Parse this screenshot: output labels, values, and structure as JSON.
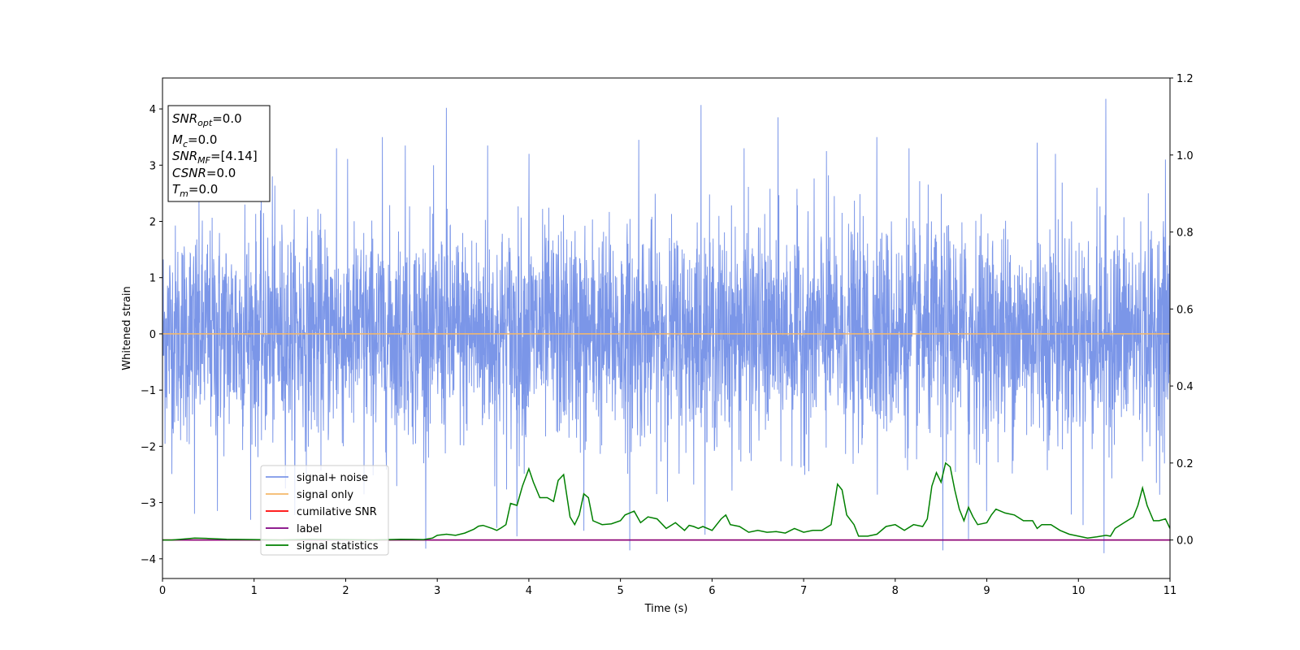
{
  "chart_data": {
    "type": "line",
    "xlabel": "Time (s)",
    "ylabel": "Whitened strain",
    "xlim": [
      0,
      11
    ],
    "ylim_left": [
      -4.35,
      4.55
    ],
    "ylim_right": [
      -0.1,
      1.2
    ],
    "x_ticks": [
      0,
      1,
      2,
      3,
      4,
      5,
      6,
      7,
      8,
      9,
      10,
      11
    ],
    "y_ticks_left": [
      -4,
      -3,
      -2,
      -1,
      0,
      1,
      2,
      3,
      4
    ],
    "y_ticks_right": [
      0.0,
      0.2,
      0.4,
      0.6,
      0.8,
      1.0,
      1.2
    ],
    "grid": false,
    "legend_position": "lower-left",
    "info_box": {
      "snr_opt": {
        "base": "SNR",
        "sub": "opt",
        "value": "=0.0"
      },
      "mc": {
        "base": "M",
        "sub": "c",
        "value": "=0.0"
      },
      "snr_mf": {
        "base": "SNR",
        "sub": "MF",
        "value": "=[4.14]"
      },
      "csnr": {
        "base": "CSNR",
        "sub": "",
        "value": "=0.0"
      },
      "tm": {
        "base": "T",
        "sub": "m",
        "value": "=0.0"
      }
    },
    "series": [
      {
        "name": "signal+ noise",
        "color": "#7b96e8",
        "axis": "left",
        "description": "noise",
        "noise_band": [
          -2.0,
          2.0
        ],
        "spikes": [
          [
            0.35,
            -3.2
          ],
          [
            0.6,
            -3.15
          ],
          [
            0.9,
            2.3
          ],
          [
            1.2,
            2.8
          ],
          [
            1.9,
            3.3
          ],
          [
            2.2,
            -2.85
          ],
          [
            2.4,
            3.5
          ],
          [
            2.65,
            3.35
          ],
          [
            3.1,
            4.02
          ],
          [
            3.55,
            3.35
          ],
          [
            3.65,
            -3.45
          ],
          [
            3.87,
            -3.6
          ],
          [
            4.0,
            3.2
          ],
          [
            4.6,
            -3.5
          ],
          [
            5.1,
            -3.85
          ],
          [
            5.2,
            3.45
          ],
          [
            5.88,
            4.07
          ],
          [
            6.35,
            3.3
          ],
          [
            6.72,
            3.85
          ],
          [
            7.25,
            3.25
          ],
          [
            7.8,
            3.5
          ],
          [
            8.15,
            3.3
          ],
          [
            8.52,
            -3.85
          ],
          [
            8.8,
            -3.65
          ],
          [
            9.55,
            3.4
          ],
          [
            9.75,
            3.2
          ],
          [
            10.05,
            -3.4
          ],
          [
            10.3,
            4.18
          ],
          [
            10.28,
            -3.9
          ],
          [
            10.95,
            3.1
          ]
        ]
      },
      {
        "name": "signal only",
        "color": "#f5b86a",
        "axis": "left",
        "x": [
          0,
          11
        ],
        "y": [
          0,
          0
        ]
      },
      {
        "name": "cumilative SNR",
        "color": "#ff0000",
        "axis": "right",
        "x": [
          0,
          11
        ],
        "y": [
          0,
          0
        ]
      },
      {
        "name": "label",
        "color": "#800080",
        "axis": "right",
        "x": [
          0,
          11
        ],
        "y": [
          0,
          0
        ]
      },
      {
        "name": "signal statistics",
        "color": "#008000",
        "axis": "right",
        "x": [
          0,
          0.1,
          0.2,
          0.35,
          0.5,
          0.7,
          1.0,
          1.3,
          1.6,
          2.0,
          2.3,
          2.6,
          2.85,
          2.95,
          3.0,
          3.1,
          3.2,
          3.3,
          3.4,
          3.45,
          3.5,
          3.6,
          3.65,
          3.7,
          3.75,
          3.8,
          3.87,
          3.93,
          4.0,
          4.05,
          4.12,
          4.2,
          4.27,
          4.32,
          4.38,
          4.45,
          4.5,
          4.55,
          4.6,
          4.65,
          4.7,
          4.8,
          4.9,
          5.0,
          5.05,
          5.1,
          5.15,
          5.22,
          5.3,
          5.4,
          5.5,
          5.6,
          5.7,
          5.75,
          5.8,
          5.85,
          5.9,
          6.0,
          6.1,
          6.15,
          6.2,
          6.3,
          6.4,
          6.5,
          6.6,
          6.7,
          6.8,
          6.9,
          7.0,
          7.1,
          7.2,
          7.3,
          7.37,
          7.42,
          7.47,
          7.55,
          7.6,
          7.7,
          7.8,
          7.9,
          8.0,
          8.1,
          8.2,
          8.3,
          8.35,
          8.4,
          8.45,
          8.5,
          8.55,
          8.6,
          8.65,
          8.7,
          8.75,
          8.8,
          8.85,
          8.9,
          9.0,
          9.05,
          9.1,
          9.2,
          9.3,
          9.4,
          9.5,
          9.55,
          9.6,
          9.7,
          9.8,
          9.9,
          10.0,
          10.1,
          10.2,
          10.3,
          10.35,
          10.4,
          10.5,
          10.6,
          10.65,
          10.7,
          10.75,
          10.82,
          10.88,
          10.95,
          11.0
        ],
        "y": [
          0.0,
          0.0,
          0.002,
          0.005,
          0.004,
          0.002,
          0.001,
          0.0,
          0.002,
          0.001,
          0.0,
          0.002,
          0.001,
          0.005,
          0.012,
          0.015,
          0.012,
          0.018,
          0.028,
          0.036,
          0.038,
          0.03,
          0.025,
          0.032,
          0.04,
          0.095,
          0.09,
          0.14,
          0.185,
          0.15,
          0.11,
          0.11,
          0.1,
          0.155,
          0.17,
          0.06,
          0.04,
          0.065,
          0.12,
          0.11,
          0.05,
          0.04,
          0.042,
          0.05,
          0.065,
          0.07,
          0.075,
          0.045,
          0.06,
          0.055,
          0.03,
          0.045,
          0.025,
          0.038,
          0.035,
          0.03,
          0.035,
          0.025,
          0.055,
          0.065,
          0.04,
          0.035,
          0.02,
          0.025,
          0.02,
          0.022,
          0.018,
          0.03,
          0.02,
          0.025,
          0.025,
          0.04,
          0.145,
          0.13,
          0.065,
          0.04,
          0.01,
          0.01,
          0.015,
          0.035,
          0.04,
          0.025,
          0.04,
          0.035,
          0.055,
          0.14,
          0.175,
          0.15,
          0.2,
          0.19,
          0.13,
          0.08,
          0.05,
          0.085,
          0.06,
          0.04,
          0.045,
          0.065,
          0.08,
          0.07,
          0.065,
          0.05,
          0.05,
          0.03,
          0.04,
          0.04,
          0.025,
          0.015,
          0.01,
          0.005,
          0.008,
          0.012,
          0.01,
          0.03,
          0.045,
          0.06,
          0.09,
          0.135,
          0.09,
          0.05,
          0.05,
          0.055,
          0.03
        ]
      }
    ]
  }
}
